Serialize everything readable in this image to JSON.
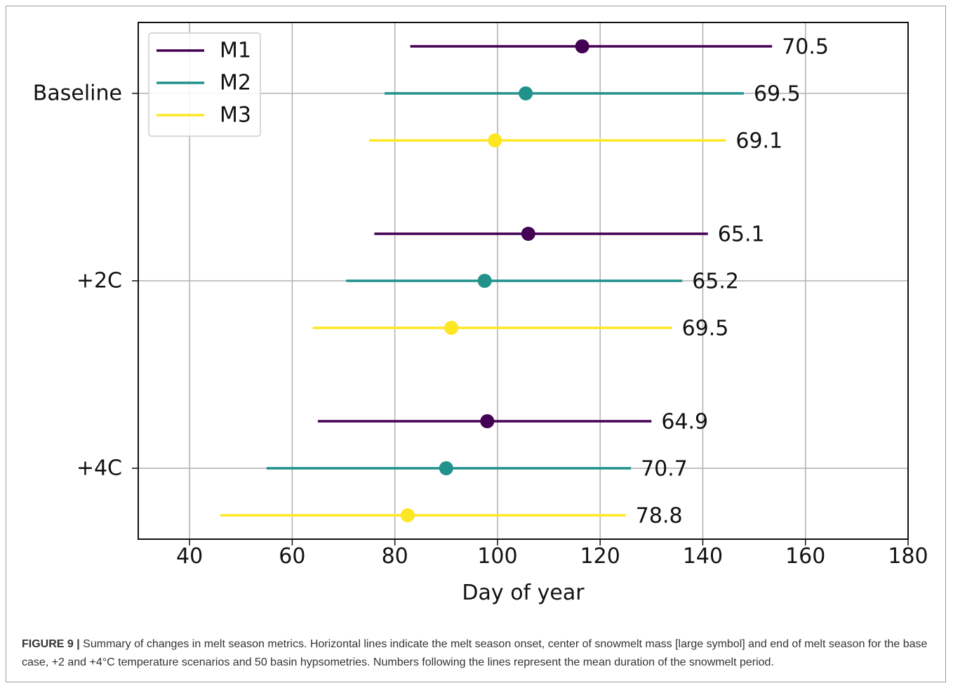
{
  "chart_data": {
    "type": "errorbar",
    "xlabel": "Day of year",
    "xlim": [
      30,
      180
    ],
    "xticks": [
      40,
      60,
      80,
      100,
      120,
      140,
      160,
      180
    ],
    "grid": true,
    "legend_position": "top-left",
    "categories": [
      "Baseline",
      "+2C",
      "+4C"
    ],
    "series": [
      {
        "name": "M1",
        "color": "#440154",
        "points": [
          {
            "category": "Baseline",
            "start": 83,
            "center": 116.5,
            "end": 153.5,
            "label": "70.5"
          },
          {
            "category": "+2C",
            "start": 76,
            "center": 106,
            "end": 141,
            "label": "65.1"
          },
          {
            "category": "+4C",
            "start": 65,
            "center": 98,
            "end": 130,
            "label": "64.9"
          }
        ]
      },
      {
        "name": "M2",
        "color": "#21918c",
        "points": [
          {
            "category": "Baseline",
            "start": 78,
            "center": 105.5,
            "end": 148,
            "label": "69.5"
          },
          {
            "category": "+2C",
            "start": 70.5,
            "center": 97.5,
            "end": 136,
            "label": "65.2"
          },
          {
            "category": "+4C",
            "start": 55,
            "center": 90,
            "end": 126,
            "label": "70.7"
          }
        ]
      },
      {
        "name": "M3",
        "color": "#fde725",
        "points": [
          {
            "category": "Baseline",
            "start": 75,
            "center": 99.5,
            "end": 144.5,
            "label": "69.1"
          },
          {
            "category": "+2C",
            "start": 64,
            "center": 91,
            "end": 134,
            "label": "69.5"
          },
          {
            "category": "+4C",
            "start": 46,
            "center": 82.5,
            "end": 125,
            "label": "78.8"
          }
        ]
      }
    ]
  },
  "caption": {
    "lead": "FIGURE 9 |",
    "text": " Summary of changes in melt season metrics. Horizontal lines indicate the melt season onset, center of snowmelt mass [large symbol] and end of melt season for the base case, +2 and +4°C temperature scenarios and 50 basin hypsometries. Numbers following the lines represent the mean duration of the snowmelt period."
  }
}
